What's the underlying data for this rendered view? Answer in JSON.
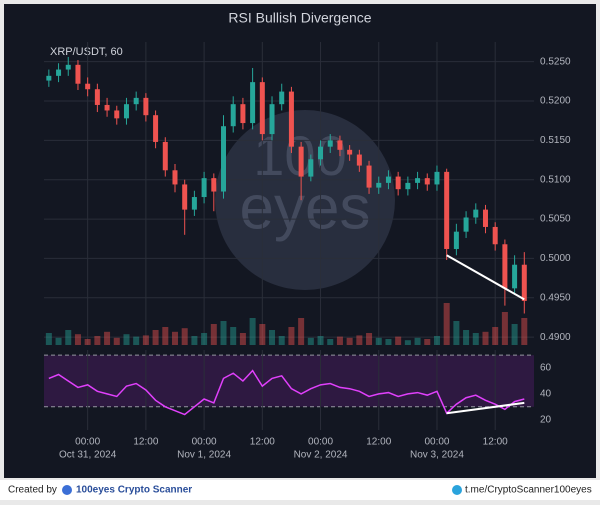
{
  "chart_data": {
    "type": "candlestick",
    "title": "RSI Bullish Divergence",
    "symbol": "XRP/USDT, 60",
    "watermark_top": "100",
    "watermark_bottom": "eyes",
    "up_color": "#26a69a",
    "down_color": "#ef5350",
    "x": [
      0,
      2,
      4,
      6,
      8,
      10,
      12,
      14,
      16,
      18,
      20,
      22,
      24,
      26,
      28,
      30,
      32,
      34,
      36,
      38,
      40,
      42,
      44,
      46,
      48,
      50,
      52,
      54,
      56,
      58,
      60,
      62,
      64,
      66,
      68,
      70,
      72,
      74,
      76,
      78,
      80,
      82,
      84,
      86,
      88,
      90,
      92,
      94,
      96,
      98
    ],
    "open": [
      0.5226,
      0.5232,
      0.524,
      0.5246,
      0.5222,
      0.5215,
      0.5195,
      0.5188,
      0.5178,
      0.5196,
      0.5204,
      0.5182,
      0.5148,
      0.5112,
      0.5094,
      0.5062,
      0.5078,
      0.5102,
      0.5085,
      0.5168,
      0.5196,
      0.5172,
      0.5224,
      0.5158,
      0.5196,
      0.5212,
      0.5142,
      0.5104,
      0.5126,
      0.5142,
      0.515,
      0.5138,
      0.5132,
      0.5118,
      0.509,
      0.5096,
      0.5104,
      0.5088,
      0.5096,
      0.5102,
      0.5094,
      0.511,
      0.5012,
      0.5034,
      0.5052,
      0.5062,
      0.504,
      0.5018,
      0.4962,
      0.4992
    ],
    "high": [
      0.524,
      0.5248,
      0.5256,
      0.5252,
      0.523,
      0.5222,
      0.5204,
      0.5194,
      0.5204,
      0.5212,
      0.521,
      0.5188,
      0.5154,
      0.512,
      0.51,
      0.5086,
      0.511,
      0.5108,
      0.5182,
      0.5206,
      0.5204,
      0.5242,
      0.523,
      0.5206,
      0.5222,
      0.5218,
      0.5148,
      0.5132,
      0.515,
      0.5158,
      0.5156,
      0.5144,
      0.5138,
      0.5124,
      0.5104,
      0.5112,
      0.511,
      0.5104,
      0.511,
      0.5108,
      0.5118,
      0.5114,
      0.5044,
      0.506,
      0.507,
      0.5068,
      0.5046,
      0.5024,
      0.5004,
      0.5008
    ],
    "low": [
      0.5218,
      0.5224,
      0.5232,
      0.5214,
      0.5206,
      0.5186,
      0.518,
      0.517,
      0.517,
      0.5188,
      0.5174,
      0.514,
      0.5104,
      0.5084,
      0.503,
      0.5054,
      0.507,
      0.506,
      0.5076,
      0.516,
      0.5164,
      0.5164,
      0.515,
      0.515,
      0.5188,
      0.5134,
      0.5074,
      0.5098,
      0.5118,
      0.5134,
      0.513,
      0.5124,
      0.511,
      0.5082,
      0.5082,
      0.5088,
      0.508,
      0.508,
      0.5088,
      0.5086,
      0.5086,
      0.4998,
      0.5004,
      0.5026,
      0.5044,
      0.5032,
      0.501,
      0.494,
      0.4954,
      0.493
    ],
    "close": [
      0.5232,
      0.524,
      0.5246,
      0.5222,
      0.5215,
      0.5195,
      0.5188,
      0.5178,
      0.5196,
      0.5204,
      0.5182,
      0.5148,
      0.5112,
      0.5094,
      0.5062,
      0.5078,
      0.5102,
      0.5085,
      0.5168,
      0.5196,
      0.5172,
      0.5224,
      0.5158,
      0.5196,
      0.5212,
      0.5142,
      0.5104,
      0.5126,
      0.5142,
      0.515,
      0.5138,
      0.5132,
      0.5118,
      0.509,
      0.5096,
      0.5104,
      0.5088,
      0.5096,
      0.5102,
      0.5094,
      0.511,
      0.5012,
      0.5034,
      0.5052,
      0.5062,
      0.504,
      0.5018,
      0.4962,
      0.4992,
      0.4946
    ],
    "volume": [
      20,
      12,
      25,
      18,
      10,
      15,
      22,
      12,
      18,
      14,
      16,
      25,
      30,
      22,
      28,
      15,
      20,
      35,
      40,
      30,
      20,
      45,
      35,
      25,
      15,
      30,
      45,
      12,
      15,
      10,
      14,
      12,
      16,
      20,
      12,
      10,
      14,
      8,
      12,
      10,
      15,
      70,
      40,
      25,
      20,
      22,
      30,
      55,
      35,
      45
    ],
    "volume_lim": [
      0,
      100
    ],
    "rsi": [
      52,
      55,
      50,
      45,
      47,
      42,
      40,
      38,
      46,
      48,
      43,
      35,
      30,
      27,
      24,
      30,
      36,
      33,
      52,
      56,
      50,
      58,
      46,
      52,
      54,
      44,
      40,
      44,
      47,
      48,
      45,
      44,
      42,
      38,
      40,
      41,
      38,
      40,
      41,
      39,
      42,
      25,
      32,
      37,
      39,
      35,
      32,
      28,
      34,
      36
    ],
    "rsi_color": "#e040fb",
    "rsi_levels": [
      30,
      70
    ],
    "xlim": [
      -1,
      100
    ],
    "ylim": [
      0.489,
      0.5275
    ],
    "y2lim": [
      12,
      74
    ],
    "xticks": [
      {
        "value": 8,
        "label": "00:00"
      },
      {
        "value": 20,
        "label": "12:00"
      },
      {
        "value": 32,
        "label": "00:00"
      },
      {
        "value": 44,
        "label": "12:00"
      },
      {
        "value": 56,
        "label": "00:00"
      },
      {
        "value": 68,
        "label": "12:00"
      },
      {
        "value": 80,
        "label": "00:00"
      },
      {
        "value": 92,
        "label": "12:00"
      }
    ],
    "xdates": [
      {
        "value": 8,
        "label": "Oct 31, 2024"
      },
      {
        "value": 32,
        "label": "Nov 1, 2024"
      },
      {
        "value": 56,
        "label": "Nov 2, 2024"
      },
      {
        "value": 80,
        "label": "Nov 3, 2024"
      }
    ],
    "yticks": [
      {
        "value": 0.49,
        "label": "0.4900"
      },
      {
        "value": 0.495,
        "label": "0.4950"
      },
      {
        "value": 0.5,
        "label": "0.5000"
      },
      {
        "value": 0.505,
        "label": "0.5050"
      },
      {
        "value": 0.51,
        "label": "0.5100"
      },
      {
        "value": 0.515,
        "label": "0.5150"
      },
      {
        "value": 0.52,
        "label": "0.5200"
      },
      {
        "value": 0.525,
        "label": "0.5250"
      }
    ],
    "y2ticks": [
      20,
      40,
      60
    ],
    "grid": true,
    "annotations": [
      {
        "pane": "price",
        "x1": 82,
        "y1": 0.5004,
        "x2": 98,
        "y2": 0.4948,
        "color": "#ffffff"
      },
      {
        "pane": "rsi",
        "x1": 82,
        "y1": 25,
        "x2": 98,
        "y2": 33,
        "color": "#ffffff"
      }
    ]
  },
  "footer": {
    "created_by": "Created by",
    "brand": "100eyes Crypto Scanner",
    "link": "t.me/CryptoScanner100eyes"
  }
}
